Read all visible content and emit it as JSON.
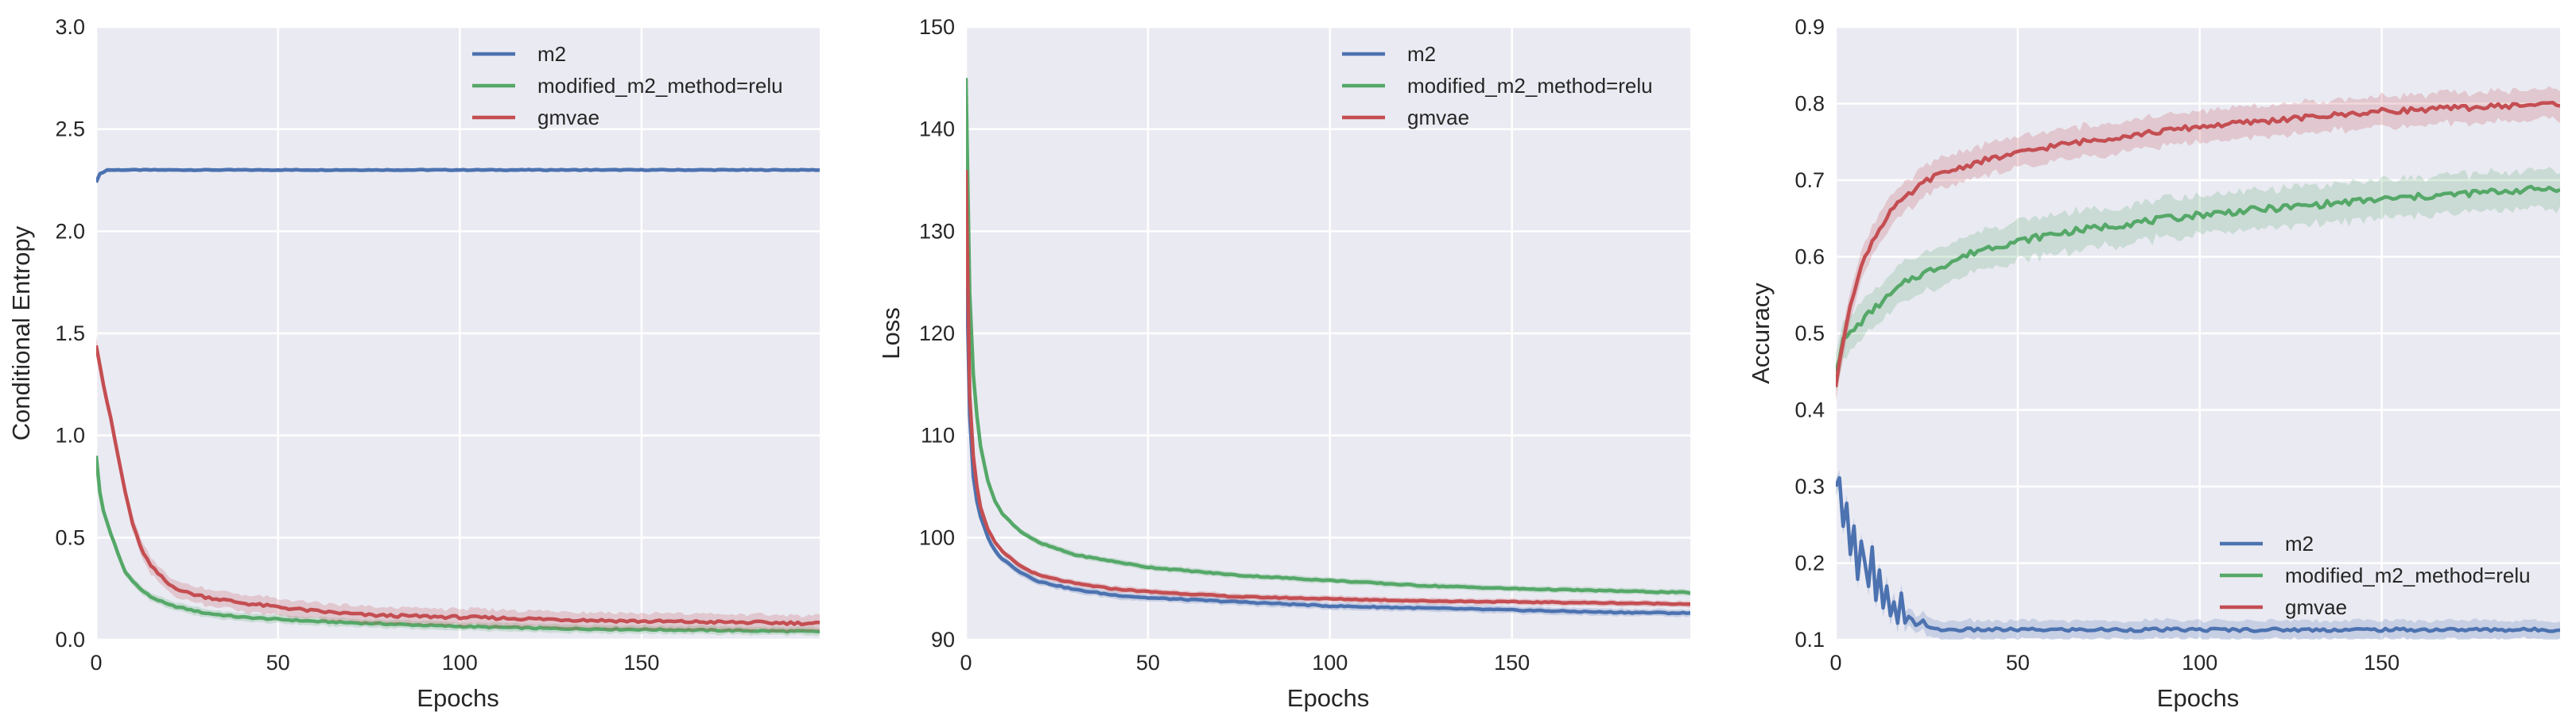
{
  "colors": {
    "m2": "#4c72b0",
    "modified_m2_method=relu": "#55a868",
    "gmvae": "#c44e52",
    "panel_bg": "#eaeaf2",
    "grid": "#ffffff"
  },
  "chart_data": [
    {
      "type": "line",
      "xlabel": "Epochs",
      "ylabel": "Conditional Entropy",
      "xlim": [
        0,
        199
      ],
      "ylim": [
        0,
        3.0
      ],
      "xticks": [
        0,
        50,
        100,
        150
      ],
      "yticks": [
        0.0,
        0.5,
        1.0,
        1.5,
        2.0,
        2.5,
        3.0
      ],
      "ytick_labels": [
        "0.0",
        "0.5",
        "1.0",
        "1.5",
        "2.0",
        "2.5",
        "3.0"
      ],
      "legend": {
        "position": "upper-right",
        "entries": [
          "m2",
          "modified_m2_method=relu",
          "gmvae"
        ]
      },
      "grid": true,
      "series": [
        {
          "name": "m2",
          "x": [
            0,
            1,
            2,
            3,
            5,
            199
          ],
          "y": [
            2.24,
            2.28,
            2.29,
            2.3,
            2.3,
            2.3
          ],
          "band": 0.01
        },
        {
          "name": "modified_m2_method=relu",
          "x": [
            0,
            1,
            2,
            4,
            6,
            8,
            10,
            12,
            15,
            20,
            25,
            30,
            40,
            50,
            60,
            75,
            100,
            125,
            150,
            175,
            199
          ],
          "y": [
            0.9,
            0.72,
            0.63,
            0.52,
            0.42,
            0.33,
            0.29,
            0.25,
            0.21,
            0.17,
            0.15,
            0.13,
            0.11,
            0.1,
            0.09,
            0.08,
            0.065,
            0.055,
            0.05,
            0.045,
            0.04
          ],
          "band": 0.02
        },
        {
          "name": "gmvae",
          "x": [
            0,
            1,
            2,
            4,
            6,
            8,
            10,
            12,
            15,
            20,
            25,
            30,
            40,
            50,
            60,
            75,
            100,
            125,
            150,
            175,
            199
          ],
          "y": [
            1.44,
            1.35,
            1.25,
            1.08,
            0.9,
            0.72,
            0.57,
            0.46,
            0.36,
            0.27,
            0.23,
            0.21,
            0.18,
            0.16,
            0.14,
            0.12,
            0.11,
            0.1,
            0.09,
            0.085,
            0.08
          ],
          "band": 0.04
        }
      ]
    },
    {
      "type": "line",
      "xlabel": "Epochs",
      "ylabel": "Loss",
      "xlim": [
        0,
        199
      ],
      "ylim": [
        90,
        150
      ],
      "xticks": [
        0,
        50,
        100,
        150
      ],
      "yticks": [
        90,
        100,
        110,
        120,
        130,
        140,
        150
      ],
      "ytick_labels": [
        "90",
        "100",
        "110",
        "120",
        "130",
        "140",
        "150"
      ],
      "legend": {
        "position": "upper-right",
        "entries": [
          "m2",
          "modified_m2_method=relu",
          "gmvae"
        ]
      },
      "grid": true,
      "series": [
        {
          "name": "m2",
          "x": [
            0,
            1,
            2,
            3,
            4,
            6,
            8,
            10,
            15,
            20,
            30,
            40,
            50,
            75,
            100,
            125,
            150,
            175,
            199
          ],
          "y": [
            129,
            112,
            106,
            103.5,
            102,
            100,
            98.7,
            97.9,
            96.6,
            95.7,
            94.9,
            94.4,
            94.1,
            93.7,
            93.3,
            93.1,
            92.9,
            92.7,
            92.6
          ],
          "band": 0.35
        },
        {
          "name": "modified_m2_method=relu",
          "x": [
            0,
            1,
            2,
            3,
            4,
            6,
            8,
            10,
            15,
            20,
            30,
            40,
            50,
            75,
            100,
            125,
            150,
            175,
            199
          ],
          "y": [
            145,
            124,
            116,
            112,
            109,
            105.5,
            103.6,
            102.3,
            100.6,
            99.5,
            98.3,
            97.7,
            97.1,
            96.3,
            95.8,
            95.3,
            95,
            94.8,
            94.6
          ],
          "band": 0.3
        },
        {
          "name": "gmvae",
          "x": [
            0,
            1,
            2,
            3,
            4,
            6,
            8,
            10,
            15,
            20,
            30,
            40,
            50,
            75,
            100,
            125,
            150,
            175,
            199
          ],
          "y": [
            136,
            114,
            108,
            105,
            103,
            100.8,
            99.5,
            98.6,
            97.2,
            96.3,
            95.5,
            95,
            94.7,
            94.2,
            94,
            93.8,
            93.7,
            93.6,
            93.5
          ],
          "band": 0.3
        }
      ]
    },
    {
      "type": "line",
      "xlabel": "Epochs",
      "ylabel": "Accuracy",
      "xlim": [
        0,
        199
      ],
      "ylim": [
        0.1,
        0.9
      ],
      "xticks": [
        0,
        50,
        100,
        150
      ],
      "yticks": [
        0.1,
        0.2,
        0.3,
        0.4,
        0.5,
        0.6,
        0.7,
        0.8,
        0.9
      ],
      "ytick_labels": [
        "0.1",
        "0.2",
        "0.3",
        "0.4",
        "0.5",
        "0.6",
        "0.7",
        "0.8",
        "0.9"
      ],
      "legend": {
        "position": "lower-right",
        "entries": [
          "m2",
          "modified_m2_method=relu",
          "gmvae"
        ]
      },
      "grid": true,
      "series": [
        {
          "name": "m2",
          "x": [
            0,
            1,
            2,
            3,
            4,
            5,
            6,
            7,
            8,
            9,
            10,
            11,
            12,
            13,
            14,
            15,
            16,
            17,
            18,
            19,
            20,
            22,
            24,
            26,
            28,
            30,
            35,
            50,
            100,
            150,
            199
          ],
          "y": [
            0.3,
            0.31,
            0.25,
            0.28,
            0.21,
            0.25,
            0.18,
            0.23,
            0.2,
            0.17,
            0.22,
            0.15,
            0.19,
            0.14,
            0.17,
            0.13,
            0.15,
            0.12,
            0.16,
            0.12,
            0.13,
            0.12,
            0.125,
            0.114,
            0.113,
            0.113,
            0.113,
            0.113,
            0.113,
            0.113,
            0.113
          ],
          "band": 0.012
        },
        {
          "name": "modified_m2_method=relu",
          "x": [
            0,
            2,
            4,
            6,
            8,
            10,
            15,
            20,
            25,
            30,
            40,
            50,
            60,
            75,
            100,
            125,
            150,
            175,
            199
          ],
          "y": [
            0.45,
            0.49,
            0.5,
            0.51,
            0.52,
            0.53,
            0.55,
            0.57,
            0.58,
            0.59,
            0.61,
            0.62,
            0.63,
            0.64,
            0.655,
            0.665,
            0.675,
            0.683,
            0.69
          ],
          "band": 0.025
        },
        {
          "name": "gmvae",
          "x": [
            0,
            2,
            4,
            6,
            8,
            10,
            15,
            20,
            25,
            30,
            40,
            50,
            60,
            75,
            100,
            125,
            150,
            175,
            199
          ],
          "y": [
            0.43,
            0.49,
            0.54,
            0.57,
            0.6,
            0.62,
            0.66,
            0.68,
            0.7,
            0.71,
            0.725,
            0.735,
            0.745,
            0.755,
            0.77,
            0.78,
            0.79,
            0.795,
            0.8
          ],
          "band": 0.02
        }
      ]
    }
  ]
}
